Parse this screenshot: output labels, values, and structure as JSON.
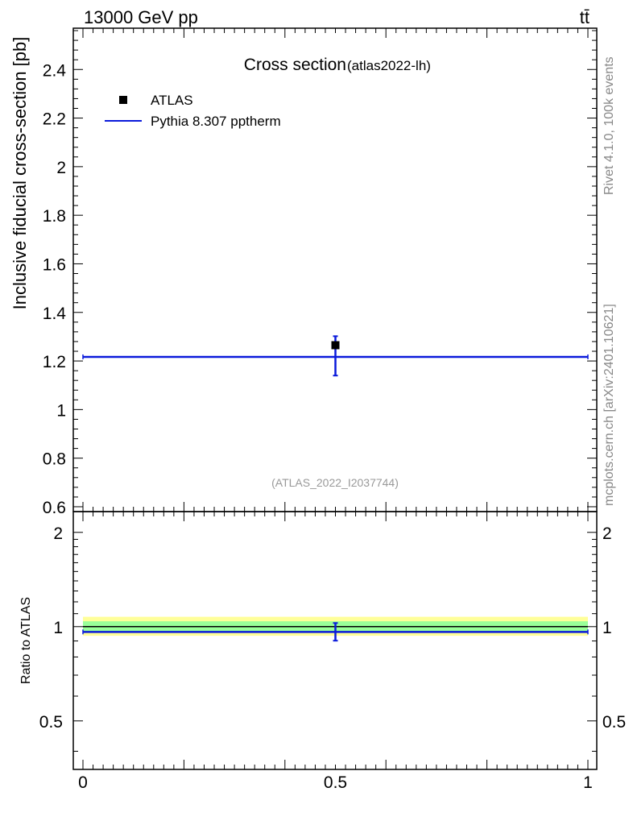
{
  "header": {
    "left": "13000 GeV pp",
    "right": "tt̄"
  },
  "side_labels": {
    "rivet": "Rivet 4.1.0,  100k events",
    "mcplots": "mcplots.cern.ch [arXiv:2401.10621]"
  },
  "chart_data": [
    {
      "type": "scatter",
      "panel": "main",
      "title": "Cross section",
      "subtitle": "(atlas2022-lh)",
      "ylabel": "Inclusive fiducial cross-section [pb]",
      "xlabel": "",
      "xlim": [
        0,
        1
      ],
      "ylim": [
        0.58,
        2.57
      ],
      "yticks": [
        0.6,
        0.8,
        1,
        1.2,
        1.4,
        1.6,
        1.8,
        2,
        2.2,
        2.4
      ],
      "ytick_labels": [
        "0.6",
        "0.8",
        "1",
        "1.2",
        "1.4",
        "1.6",
        "1.8",
        "2",
        "2.2",
        "2.4"
      ],
      "legend_placement": "top-left",
      "annotation": "(ATLAS_2022_I2037744)",
      "series": [
        {
          "name": "ATLAS",
          "kind": "points",
          "color": "#000000",
          "points": [
            {
              "x": 0.5,
              "y": 1.265,
              "yerr_low": 0.0,
              "yerr_high": 0.0
            }
          ]
        },
        {
          "name": "Pythia 8.307 pptherm",
          "kind": "histogram",
          "color": "#0a1adb",
          "bins": [
            {
              "xlow": 0,
              "xhigh": 1,
              "y": 1.217
            }
          ],
          "points": [
            {
              "x": 0.5,
              "y": 1.217,
              "yerr_low": 0.077,
              "yerr_high": 0.085
            }
          ]
        }
      ]
    },
    {
      "type": "scatter",
      "panel": "ratio",
      "ylabel": "Ratio to ATLAS",
      "xlim": [
        0,
        1
      ],
      "ylim": [
        0.35,
        2.33
      ],
      "yscale": "log",
      "yticks": [
        0.5,
        1,
        2
      ],
      "ytick_labels": [
        "0.5",
        "1",
        "2"
      ],
      "xticks": [
        0,
        0.5,
        1
      ],
      "xtick_labels": [
        "0",
        "0.5",
        "1"
      ],
      "bands": [
        {
          "name": "ATLAS total uncertainty",
          "color": "#ffff99",
          "low": 0.935,
          "high": 1.075
        },
        {
          "name": "ATLAS stat uncertainty",
          "color": "#99ff99",
          "low": 0.965,
          "high": 1.04
        }
      ],
      "reference_line": 1,
      "series": [
        {
          "name": "Pythia 8.307 pptherm",
          "kind": "histogram",
          "color": "#0a1adb",
          "bins": [
            {
              "xlow": 0,
              "xhigh": 1,
              "y": 0.962
            }
          ],
          "points": [
            {
              "x": 0.5,
              "y": 0.962,
              "yerr_low": 0.06,
              "yerr_high": 0.065
            }
          ]
        }
      ]
    }
  ]
}
